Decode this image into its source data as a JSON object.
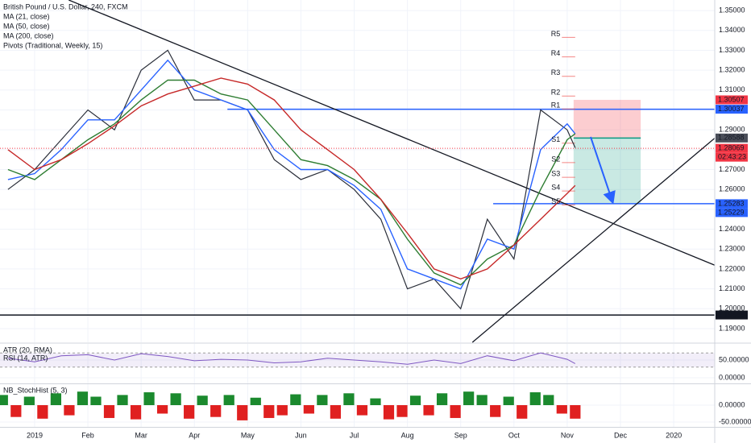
{
  "chart_data": [
    {
      "type": "line",
      "title": "British Pound / U.S. Dollar, 240, FXCM",
      "pivots_title": "Pivots (Traditional, Weekly, 15)",
      "xlim": [
        -0.65,
        12.77
      ],
      "xticks": [
        {
          "value": 0,
          "label": "2019"
        },
        {
          "value": 1,
          "label": "Feb"
        },
        {
          "value": 2,
          "label": "Mar"
        },
        {
          "value": 3,
          "label": "Apr"
        },
        {
          "value": 4,
          "label": "May"
        },
        {
          "value": 5,
          "label": "Jun"
        },
        {
          "value": 6,
          "label": "Jul"
        },
        {
          "value": 7,
          "label": "Aug"
        },
        {
          "value": 8,
          "label": "Sep"
        },
        {
          "value": 9,
          "label": "Oct"
        },
        {
          "value": 10,
          "label": "Nov"
        },
        {
          "value": 11,
          "label": "Dec"
        },
        {
          "value": 12,
          "label": "2020"
        }
      ],
      "ylim": [
        1.1831,
        1.3553
      ],
      "yticks": [
        {
          "value": 1.19,
          "label": "1.19000"
        },
        {
          "value": 1.2,
          "label": "1.20000"
        },
        {
          "value": 1.21,
          "label": "1.21000"
        },
        {
          "value": 1.22,
          "label": "1.22000"
        },
        {
          "value": 1.23,
          "label": "1.23000"
        },
        {
          "value": 1.24,
          "label": "1.24000"
        },
        {
          "value": 1.25,
          "label": "1.25000"
        },
        {
          "value": 1.26,
          "label": "1.26000"
        },
        {
          "value": 1.27,
          "label": "1.27000"
        },
        {
          "value": 1.28,
          "label": "1.28000"
        },
        {
          "value": 1.29,
          "label": "1.29000"
        },
        {
          "value": 1.3,
          "label": "1.30000"
        },
        {
          "value": 1.31,
          "label": "1.31000"
        },
        {
          "value": 1.32,
          "label": "1.32000"
        },
        {
          "value": 1.33,
          "label": "1.33000"
        },
        {
          "value": 1.34,
          "label": "1.34000"
        },
        {
          "value": 1.35,
          "label": "1.35000"
        }
      ],
      "grid": true,
      "x": [
        -0.5,
        0,
        0.5,
        1,
        1.5,
        2,
        2.5,
        3,
        3.5,
        4,
        4.5,
        5,
        5.5,
        6,
        6.5,
        7,
        7.5,
        8,
        8.5,
        9,
        9.5,
        10,
        10.15
      ],
      "price_color": "#2a2e39",
      "price_values": [
        1.26,
        1.27,
        1.285,
        1.3,
        1.29,
        1.32,
        1.33,
        1.305,
        1.305,
        1.3,
        1.275,
        1.265,
        1.27,
        1.26,
        1.245,
        1.21,
        1.215,
        1.2,
        1.245,
        1.225,
        1.3,
        1.29,
        1.281
      ],
      "series": [
        {
          "name": "MA (21, close)",
          "color": "#2962ff",
          "values": [
            1.265,
            1.268,
            1.28,
            1.295,
            1.295,
            1.31,
            1.325,
            1.31,
            1.305,
            1.3,
            1.28,
            1.27,
            1.27,
            1.262,
            1.25,
            1.22,
            1.215,
            1.21,
            1.235,
            1.23,
            1.28,
            1.293,
            1.288
          ]
        },
        {
          "name": "MA (50, close)",
          "color": "#2e7d32",
          "values": [
            1.27,
            1.265,
            1.275,
            1.285,
            1.293,
            1.305,
            1.315,
            1.315,
            1.308,
            1.305,
            1.29,
            1.275,
            1.272,
            1.265,
            1.255,
            1.235,
            1.218,
            1.212,
            1.225,
            1.232,
            1.26,
            1.285,
            1.288
          ]
        },
        {
          "name": "MA (200, close)",
          "color": "#c62828",
          "values": [
            1.28,
            1.27,
            1.275,
            1.283,
            1.292,
            1.302,
            1.308,
            1.312,
            1.316,
            1.313,
            1.305,
            1.29,
            1.28,
            1.27,
            1.255,
            1.238,
            1.22,
            1.215,
            1.22,
            1.232,
            1.245,
            1.258,
            1.262
          ]
        }
      ],
      "hlines": [
        {
          "value": 1.30037,
          "from": 3.62,
          "color": "#2962ff"
        },
        {
          "value": 1.25283,
          "from": 8.61,
          "color": "#2962ff"
        },
        {
          "value": 1.19685,
          "from": -0.65,
          "color": "#131722"
        }
      ],
      "trendlines": [
        [
          [
            0.64,
            1.3553
          ],
          [
            12.77,
            1.2219
          ]
        ],
        [
          [
            8.22,
            1.1831
          ],
          [
            12.77,
            1.2858
          ]
        ]
      ],
      "position": {
        "x": [
          10.12,
          11.38
        ],
        "stop": 1.30507,
        "entry": 1.28588,
        "target": 1.25283
      },
      "pivot_x": [
        9.9,
        10.15
      ],
      "pivot_color": "#ef5350",
      "pivots": [
        {
          "label": "R5",
          "value": 1.3365
        },
        {
          "label": "R4",
          "value": 1.3267
        },
        {
          "label": "R3",
          "value": 1.3169
        },
        {
          "label": "R2",
          "value": 1.307
        },
        {
          "label": "R1",
          "value": 1.3005
        },
        {
          "label": "S1",
          "value": 1.2833
        },
        {
          "label": "S2",
          "value": 1.2735
        },
        {
          "label": "S3",
          "value": 1.2661
        },
        {
          "label": "S4",
          "value": 1.2592
        },
        {
          "label": "S5",
          "value": 1.2522
        }
      ],
      "price_labels": [
        {
          "value": 1.30507,
          "label": "1.30507",
          "color": "#f23645"
        },
        {
          "value": 1.30037,
          "label": "1.30037",
          "color": "#2962ff"
        },
        {
          "value": 1.28588,
          "label": "1.28588",
          "color": "#4a4e59"
        },
        {
          "value": 1.28069,
          "label": "1.28069",
          "color": "#f23645",
          "line": "dotted"
        },
        {
          "value": 1.25283,
          "label": "1.25283",
          "color": "#2962ff"
        },
        {
          "value": 1.25229,
          "label": "1.25229",
          "color": "#2962ff"
        },
        {
          "value": 1.19685,
          "label": "1.19685",
          "color": "#131722"
        }
      ],
      "countdown": "02:43:23"
    },
    {
      "type": "line",
      "indicators": [
        "ATR (20, RMA)",
        "RSI (14, ATR)"
      ],
      "xlim": [
        -0.65,
        12.77
      ],
      "ylim": [
        -15.9,
        95.5
      ],
      "yticks": [
        {
          "value": 50,
          "label": "50.00000"
        },
        {
          "value": 0,
          "label": "0.00000"
        }
      ],
      "band": [
        30,
        70
      ],
      "x": [
        -0.5,
        0,
        0.5,
        1,
        1.5,
        2,
        2.5,
        3,
        3.5,
        4,
        4.5,
        5,
        5.5,
        6,
        6.5,
        7,
        7.5,
        8,
        8.5,
        9,
        9.5,
        10,
        10.15
      ],
      "series": [
        {
          "color": "#7e57c2",
          "values": [
            55,
            45,
            62,
            65,
            50,
            68,
            60,
            48,
            52,
            50,
            42,
            45,
            55,
            50,
            45,
            38,
            50,
            40,
            62,
            48,
            70,
            52,
            40
          ]
        }
      ]
    },
    {
      "type": "bar",
      "title": "NB_StochHist (5, 3)",
      "xlim": [
        -0.65,
        12.77
      ],
      "ylim": [
        -64.3,
        61.9
      ],
      "yticks": [
        {
          "value": 0,
          "label": "0.00000"
        },
        {
          "value": -50,
          "label": "-50.00000"
        }
      ],
      "up_color": "#1b8a2e",
      "down_color": "#e02020",
      "x": [
        -0.6,
        -0.35,
        -0.1,
        0.15,
        0.4,
        0.65,
        0.9,
        1.15,
        1.4,
        1.65,
        1.9,
        2.15,
        2.4,
        2.65,
        2.9,
        3.15,
        3.4,
        3.65,
        3.9,
        4.15,
        4.4,
        4.65,
        4.9,
        5.15,
        5.4,
        5.65,
        5.9,
        6.15,
        6.4,
        6.65,
        6.9,
        7.15,
        7.4,
        7.65,
        7.9,
        8.15,
        8.4,
        8.65,
        8.9,
        9.15,
        9.4,
        9.65,
        9.9,
        10.15
      ],
      "values": [
        30,
        -35,
        25,
        -40,
        35,
        -30,
        40,
        25,
        -38,
        30,
        -42,
        38,
        -25,
        35,
        -40,
        28,
        -35,
        30,
        -45,
        22,
        -38,
        -30,
        32,
        -25,
        30,
        -40,
        35,
        -30,
        20,
        -42,
        -35,
        28,
        -30,
        35,
        -38,
        40,
        30,
        -35,
        25,
        -40,
        38,
        30,
        -25,
        -40
      ]
    }
  ]
}
